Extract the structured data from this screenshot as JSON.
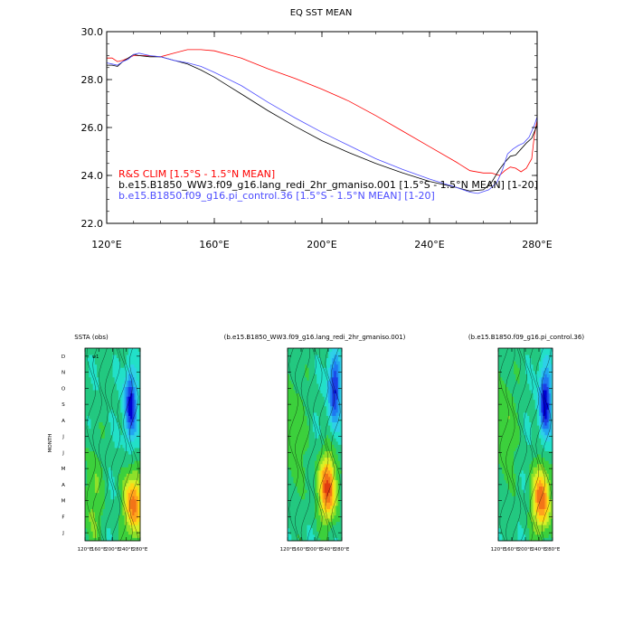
{
  "figure": {
    "line_panel_title": "EQ SST MEAN",
    "hov_titles": [
      "SSTA (obs)",
      "(b.e15.B1850_WW3.f09_g16.lang_redi_2hr_gmaniso.001)",
      "(b.e15.B1850.f09_g16.pi_control.36)"
    ],
    "hov_ylabel": "MONTH",
    "hov_obs_tag": "w1"
  },
  "chart_data": [
    {
      "type": "line",
      "title": "EQ SST MEAN",
      "xlabel": "",
      "ylabel": "",
      "xlim": [
        120,
        280
      ],
      "ylim": [
        22,
        30
      ],
      "x_ticks": [
        120,
        160,
        200,
        240,
        280
      ],
      "x_tick_labels": [
        "120°E",
        "160°E",
        "200°E",
        "240°E",
        "280°E"
      ],
      "y_ticks": [
        22,
        24,
        26,
        28,
        30
      ],
      "y_tick_labels": [
        "22.0",
        "24.0",
        "26.0",
        "28.0",
        "30.0"
      ],
      "grid": false,
      "legend_position": "bottom-left, inside plot",
      "series": [
        {
          "name": "R&S CLIM [1.5°S - 1.5°N MEAN]",
          "color": "#ff0000",
          "x": [
            120,
            122,
            124,
            126,
            128,
            130,
            135,
            140,
            145,
            150,
            155,
            160,
            170,
            180,
            190,
            200,
            210,
            220,
            230,
            240,
            250,
            255,
            260,
            263,
            266,
            268,
            270,
            272,
            274,
            276,
            278,
            279,
            280
          ],
          "y": [
            28.9,
            28.9,
            28.75,
            28.8,
            28.9,
            29.0,
            29.0,
            28.95,
            29.1,
            29.25,
            29.25,
            29.2,
            28.9,
            28.45,
            28.05,
            27.6,
            27.1,
            26.5,
            25.85,
            25.2,
            24.55,
            24.2,
            24.1,
            24.1,
            24.0,
            24.2,
            24.35,
            24.3,
            24.15,
            24.3,
            24.7,
            25.7,
            26.3
          ]
        },
        {
          "name": "b.e15.B1850_WW3.f09_g16.lang_redi_2hr_gmaniso.001 [1.5°S - 1.5°N MEAN] [1-20]",
          "color": "#000000",
          "x": [
            120,
            122,
            124,
            126,
            128,
            130,
            132,
            136,
            140,
            145,
            150,
            155,
            160,
            170,
            180,
            190,
            200,
            210,
            220,
            230,
            240,
            250,
            255,
            260,
            263,
            266,
            268,
            270,
            272,
            274,
            276,
            278,
            280
          ],
          "y": [
            28.6,
            28.6,
            28.55,
            28.75,
            28.9,
            29.05,
            29.0,
            28.95,
            28.95,
            28.8,
            28.65,
            28.4,
            28.1,
            27.4,
            26.7,
            26.05,
            25.45,
            24.95,
            24.5,
            24.1,
            23.75,
            23.5,
            23.35,
            23.4,
            23.7,
            24.25,
            24.55,
            24.8,
            24.85,
            25.1,
            25.35,
            25.55,
            26.1
          ]
        },
        {
          "name": "b.e15.B1850.f09_g16.pi_control.36 [1.5°S - 1.5°N MEAN] [1-20]",
          "color": "#4b4bff",
          "x": [
            120,
            122,
            124,
            126,
            128,
            130,
            132,
            136,
            140,
            145,
            150,
            155,
            160,
            170,
            180,
            190,
            200,
            210,
            220,
            230,
            240,
            250,
            255,
            258,
            262,
            265,
            267,
            269,
            271,
            273,
            275,
            277,
            279,
            280
          ],
          "y": [
            28.7,
            28.65,
            28.6,
            28.75,
            28.85,
            29.05,
            29.1,
            29.0,
            28.95,
            28.8,
            28.7,
            28.55,
            28.3,
            27.75,
            27.05,
            26.4,
            25.8,
            25.25,
            24.7,
            24.25,
            23.85,
            23.5,
            23.3,
            23.25,
            23.4,
            23.7,
            24.2,
            24.9,
            25.1,
            25.25,
            25.35,
            25.6,
            26.1,
            26.45
          ]
        }
      ]
    },
    {
      "type": "heatmap",
      "title": "SSTA (obs)",
      "ylabel": "MONTH",
      "x_tick_labels": [
        "120°E",
        "160°E",
        "200°E",
        "240°E",
        "280°E"
      ],
      "y_tick_labels": [
        "J",
        "F",
        "M",
        "A",
        "M",
        "J",
        "J",
        "A",
        "S",
        "O",
        "N",
        "D"
      ],
      "xlim": [
        120,
        280
      ],
      "months": 12,
      "features": {
        "warm_center_lon": 262,
        "warm_center_month": 2.3,
        "warm_amplitude": 1.0,
        "cold_center_lon": 252,
        "cold_center_month": 8.5,
        "cold_amplitude": 1.0,
        "west_warm_center_month": 2.5
      }
    },
    {
      "type": "heatmap",
      "title": "(b.e15.B1850_WW3.f09_g16.lang_redi_2hr_gmaniso.001)",
      "ylabel": "",
      "x_tick_labels": [
        "120°E",
        "160°E",
        "200°E",
        "240°E",
        "280°E"
      ],
      "y_tick_labels": [],
      "xlim": [
        120,
        280
      ],
      "months": 12,
      "features": {
        "warm_center_lon": 238,
        "warm_center_month": 3.3,
        "warm_amplitude": 1.05,
        "cold_center_lon": 258,
        "cold_center_month": 9.5,
        "cold_amplitude": 0.95,
        "west_warm_center_month": 6.5
      }
    },
    {
      "type": "heatmap",
      "title": "(b.e15.B1850.f09_g16.pi_control.36)",
      "ylabel": "",
      "x_tick_labels": [
        "120°E",
        "160°E",
        "200°E",
        "240°E",
        "280°E"
      ],
      "y_tick_labels": [],
      "xlim": [
        120,
        280
      ],
      "months": 12,
      "features": {
        "warm_center_lon": 248,
        "warm_center_month": 2.6,
        "warm_amplitude": 1.0,
        "cold_center_lon": 258,
        "cold_center_month": 8.7,
        "cold_amplitude": 1.05,
        "west_warm_center_month": 7.0
      }
    }
  ]
}
